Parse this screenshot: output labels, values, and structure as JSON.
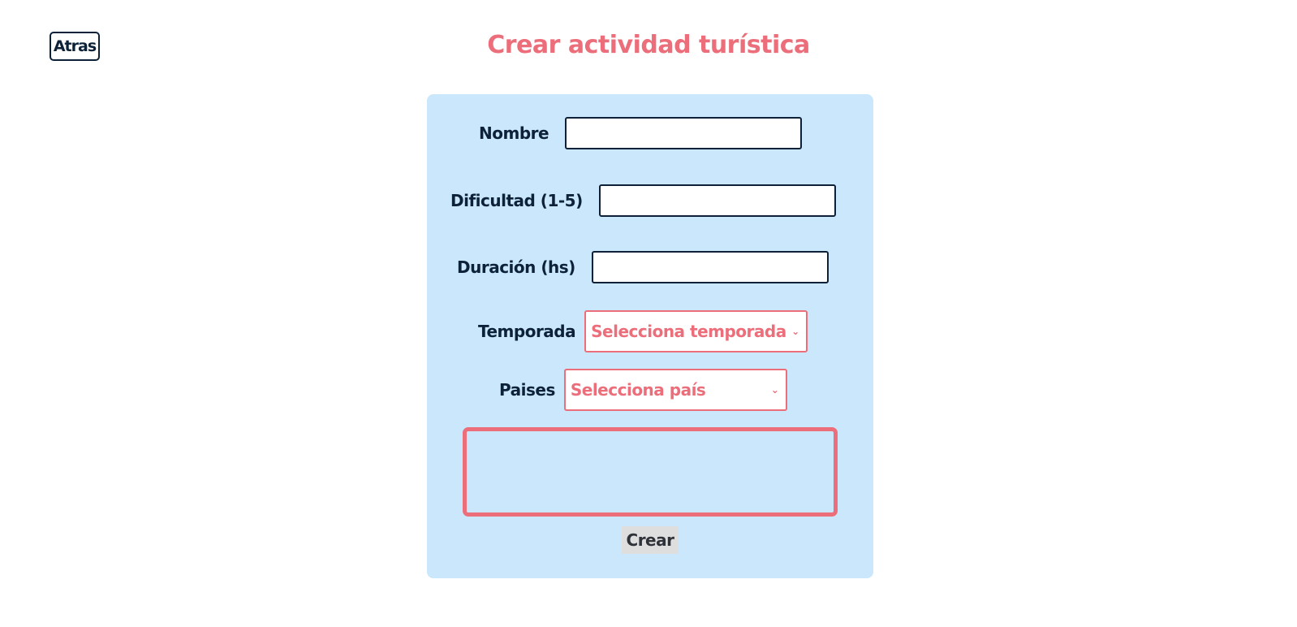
{
  "header": {
    "back_label": "Atras",
    "title": "Crear actividad turística"
  },
  "form": {
    "fields": {
      "nombre": {
        "label": "Nombre",
        "value": ""
      },
      "dificultad": {
        "label": "Dificultad (1-5)",
        "value": ""
      },
      "duracion": {
        "label": "Duración (hs)",
        "value": ""
      }
    },
    "temporada": {
      "label": "Temporada",
      "selected": "Selecciona temporada"
    },
    "paises": {
      "label": "Paises",
      "selected": "Selecciona país"
    },
    "submit_label": "Crear"
  },
  "icons": {
    "temporada_chevron": "chevron-down-icon",
    "paises_chevron": "chevron-down-icon"
  },
  "colors": {
    "accent": "#ec6e7a",
    "dark": "#0d2238",
    "card_background": "#cae7fb",
    "submit_background": "#dedede"
  }
}
